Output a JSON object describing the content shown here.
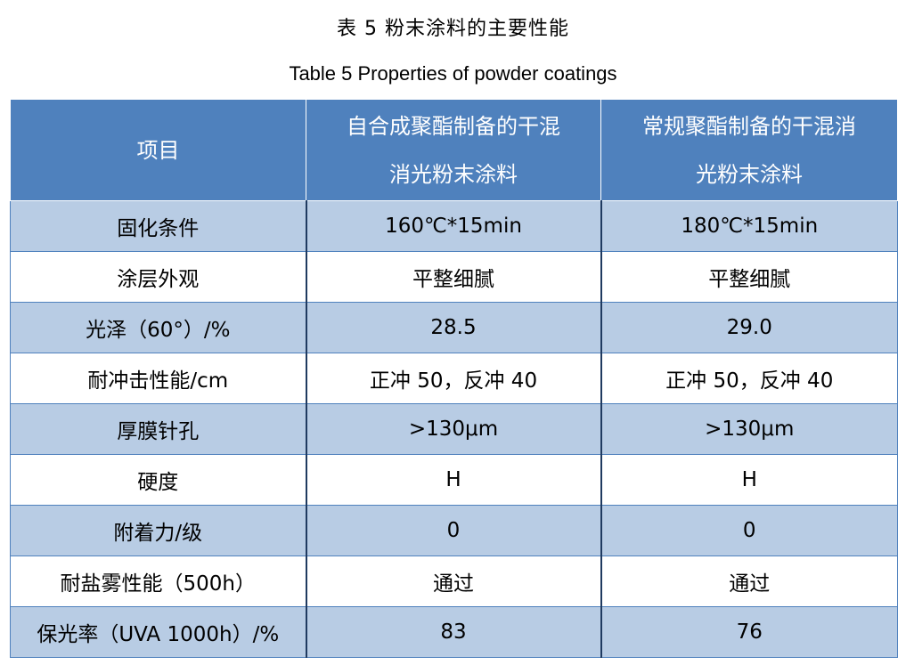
{
  "title_cn": "表 5  粉末涂料的主要性能",
  "title_en": "Table 5 Properties of powder coatings",
  "columns": [
    {
      "lines": [
        "项目"
      ]
    },
    {
      "lines": [
        "自合成聚酯制备的干混",
        "消光粉末涂料"
      ]
    },
    {
      "lines": [
        "常规聚酯制备的干混消",
        "光粉末涂料"
      ]
    }
  ],
  "rows": [
    [
      "固化条件",
      "160℃*15min",
      "180℃*15min"
    ],
    [
      "涂层外观",
      "平整细腻",
      "平整细腻"
    ],
    [
      "光泽（60°）/%",
      "28.5",
      "29.0"
    ],
    [
      "耐冲击性能/cm",
      "正冲 50，反冲 40",
      "正冲 50，反冲 40"
    ],
    [
      "厚膜针孔",
      ">130μm",
      ">130μm"
    ],
    [
      "硬度",
      "H",
      "H"
    ],
    [
      "附着力/级",
      "0",
      "0"
    ],
    [
      "耐盐雾性能（500h）",
      "通过",
      "通过"
    ],
    [
      "保光率（UVA 1000h）/%",
      "83",
      "76"
    ]
  ],
  "colors": {
    "header_bg": "#4f81bd",
    "row_band": "#b8cce4",
    "row_plain": "#ffffff"
  }
}
